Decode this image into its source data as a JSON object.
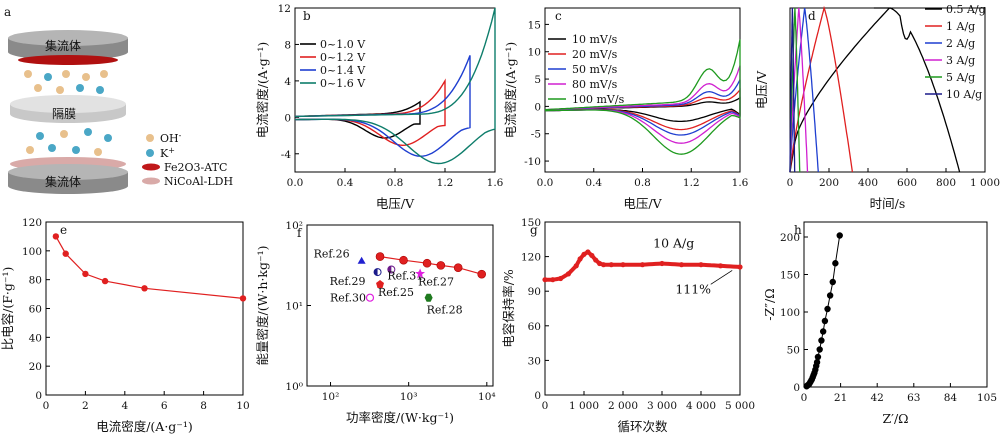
{
  "schematic": {
    "panel_label": "a",
    "top_collector": "集流体",
    "separator": "隔膜",
    "bottom_collector": "集流体",
    "legend": [
      {
        "symbol": "ion",
        "color": "#e8c08c",
        "text": "OH",
        "sup": "-"
      },
      {
        "symbol": "ion",
        "color": "#4aa7c6",
        "text": "K",
        "sup": "+"
      },
      {
        "symbol": "disc",
        "color": "#c0181a",
        "text": "Fe2O3-ATC"
      },
      {
        "symbol": "disc",
        "color": "#d9aaa8",
        "text": "NiCoAl-LDH"
      }
    ]
  },
  "chart_data": [
    {
      "id": "b",
      "type": "line",
      "panel_label": "b",
      "xlabel": "电压/V",
      "ylabel": "电流密度/(A·g⁻¹)",
      "xlim": [
        0,
        1.6
      ],
      "ylim": [
        -6,
        12
      ],
      "xticks": [
        "0.0",
        "0.4",
        "0.8",
        "1.2",
        "1.6"
      ],
      "xtick_values": [
        0,
        0.4,
        0.8,
        1.2,
        1.6
      ],
      "yticks": [
        "-4",
        "0",
        "4",
        "8",
        "12"
      ],
      "ytick_values": [
        -4,
        0,
        4,
        8,
        12
      ],
      "series": [
        {
          "name": "0~1.0 V",
          "color": "#000000",
          "vmax": 1.0,
          "peak": 1.2,
          "trough": -2.2
        },
        {
          "name": "0~1.2 V",
          "color": "#e02020",
          "vmax": 1.2,
          "peak": 3.5,
          "trough": -3.0
        },
        {
          "name": "0~1.4 V",
          "color": "#1f3fd0",
          "vmax": 1.4,
          "peak": 6.3,
          "trough": -4.2
        },
        {
          "name": "0~1.6 V",
          "color": "#0e7d6b",
          "vmax": 1.6,
          "peak": 11.5,
          "trough": -5.0
        }
      ]
    },
    {
      "id": "c",
      "type": "line",
      "panel_label": "c",
      "xlabel": "电压/V",
      "ylabel": "电流密度/(A·g⁻¹)",
      "xlim": [
        0,
        1.6
      ],
      "ylim": [
        -12,
        18
      ],
      "xticks": [
        "0.0",
        "0.4",
        "0.8",
        "1.2",
        "1.6"
      ],
      "xtick_values": [
        0,
        0.4,
        0.8,
        1.2,
        1.6
      ],
      "yticks": [
        "-10",
        "-5",
        "0",
        "5",
        "10",
        "15"
      ],
      "ytick_values": [
        -10,
        -5,
        0,
        5,
        10,
        15
      ],
      "series": [
        {
          "name": "10 mV/s",
          "color": "#000000",
          "peak": 2.0,
          "trough": -2.5
        },
        {
          "name": "20 mV/s",
          "color": "#e02020",
          "peak": 4.0,
          "trough": -4.0
        },
        {
          "name": "50 mV/s",
          "color": "#1f3fd0",
          "peak": 6.5,
          "trough": -5.0
        },
        {
          "name": "80 mV/s",
          "color": "#d020d0",
          "peak": 10.0,
          "trough": -6.5
        },
        {
          "name": "100 mV/s",
          "color": "#1f9a1f",
          "peak": 16.5,
          "trough": -8.5
        }
      ]
    },
    {
      "id": "d",
      "type": "line",
      "panel_label": "d",
      "xlabel": "时间/s",
      "ylabel": "电压/V",
      "xlim": [
        0,
        1000
      ],
      "ylim": [
        0,
        1.6
      ],
      "xticks": [
        "0",
        "200",
        "400",
        "600",
        "800",
        "1 000"
      ],
      "xtick_values": [
        0,
        200,
        400,
        600,
        800,
        1000
      ],
      "series": [
        {
          "name": "0.5 A/g",
          "color": "#000000",
          "charge": 510,
          "total": 870
        },
        {
          "name": "1 A/g",
          "color": "#e02020",
          "charge": 175,
          "total": 320
        },
        {
          "name": "2 A/g",
          "color": "#1f3fd0",
          "charge": 75,
          "total": 145
        },
        {
          "name": "3 A/g",
          "color": "#d020d0",
          "charge": 45,
          "total": 90
        },
        {
          "name": "5 A/g",
          "color": "#1f9a1f",
          "charge": 25,
          "total": 50
        },
        {
          "name": "10 A/g",
          "color": "#1a1a8a",
          "charge": 12,
          "total": 24
        }
      ]
    },
    {
      "id": "e",
      "type": "line",
      "panel_label": "e",
      "xlabel": "电流密度/(A·g⁻¹)",
      "ylabel": "比电容/(F·g⁻¹)",
      "xlim": [
        0,
        10
      ],
      "ylim": [
        0,
        120
      ],
      "xticks": [
        "0",
        "2",
        "4",
        "6",
        "8",
        "10"
      ],
      "xtick_values": [
        0,
        2,
        4,
        6,
        8,
        10
      ],
      "yticks": [
        "0",
        "20",
        "40",
        "60",
        "80",
        "100",
        "120"
      ],
      "ytick_values": [
        0,
        20,
        40,
        60,
        80,
        100,
        120
      ],
      "x": [
        0.5,
        1,
        2,
        3,
        5,
        10
      ],
      "y": [
        110,
        98,
        84,
        79,
        74,
        67
      ],
      "color": "#e02020"
    },
    {
      "id": "f",
      "type": "scatter",
      "panel_label": "f",
      "xlabel": "功率密度/(W·kg⁻¹)",
      "ylabel": "能量密度/(W·h·kg⁻¹)",
      "log": true,
      "xlim": [
        50,
        12000
      ],
      "ylim": [
        1,
        100
      ],
      "xticks": [
        "10²",
        "10³",
        "10⁴"
      ],
      "xtick_values": [
        100,
        1000,
        10000
      ],
      "yticks": [
        "10⁰",
        "10¹",
        "10²"
      ],
      "ytick_values": [
        1,
        10,
        100
      ],
      "series": [
        {
          "color": "#e02020",
          "x": [
            430,
            860,
            1720,
            2580,
            4300,
            8600
          ],
          "y": [
            40.5,
            36.5,
            33.5,
            31.5,
            29.5,
            24.5
          ]
        }
      ],
      "refs": [
        {
          "label": "Ref.26",
          "x": 250,
          "y": 36,
          "marker": "triangle",
          "color": "#2020d0"
        },
        {
          "label": "Ref.29",
          "x": 400,
          "y": 26,
          "marker": "halfcircle",
          "color": "#1a1a8a"
        },
        {
          "label": "Ref.31",
          "x": 600,
          "y": 28,
          "marker": "halfcircle",
          "color": "#6a1a8a"
        },
        {
          "label": "Ref.27",
          "x": 1400,
          "y": 25,
          "marker": "star",
          "color": "#e020e0"
        },
        {
          "label": "Ref.25",
          "x": 430,
          "y": 18.5,
          "marker": "pentagon",
          "color": "#e02020"
        },
        {
          "label": "Ref.30",
          "x": 320,
          "y": 12.5,
          "marker": "opencircle",
          "color": "#e020e0"
        },
        {
          "label": "Ref.28",
          "x": 1800,
          "y": 12.5,
          "marker": "hexagon",
          "color": "#1f7a1f"
        }
      ]
    },
    {
      "id": "g",
      "type": "line",
      "panel_label": "g",
      "xlabel": "循环次数",
      "ylabel": "电容保持率/%",
      "xlim": [
        0,
        5000
      ],
      "ylim": [
        0,
        150
      ],
      "xticks": [
        "0",
        "1 000",
        "2 000",
        "3 000",
        "4 000",
        "5 000"
      ],
      "xtick_values": [
        0,
        1000,
        2000,
        3000,
        4000,
        5000
      ],
      "yticks": [
        "0",
        "30",
        "60",
        "90",
        "120",
        "150"
      ],
      "ytick_values": [
        0,
        30,
        60,
        90,
        120,
        150
      ],
      "x": [
        0,
        200,
        400,
        600,
        800,
        900,
        1000,
        1100,
        1200,
        1300,
        1400,
        1500,
        1700,
        2000,
        2500,
        3000,
        3500,
        4000,
        4500,
        5000
      ],
      "y": [
        100,
        100,
        101,
        105,
        112,
        118,
        122,
        124,
        121,
        117,
        114,
        113,
        113,
        113,
        113,
        114,
        113,
        113,
        112,
        111
      ],
      "color": "#e02020",
      "annotation": "10 A/g",
      "end_label": "111%"
    },
    {
      "id": "h",
      "type": "scatter",
      "panel_label": "h",
      "xlabel": "Z′/Ω",
      "ylabel": "-Z″/Ω",
      "xlim": [
        0,
        105
      ],
      "ylim": [
        0,
        220
      ],
      "xticks": [
        "0",
        "21",
        "42",
        "63",
        "84",
        "105"
      ],
      "xtick_values": [
        0,
        21,
        42,
        63,
        84,
        105
      ],
      "yticks": [
        "0",
        "50",
        "100",
        "150",
        "200"
      ],
      "ytick_values": [
        0,
        50,
        100,
        150,
        200
      ],
      "x": [
        1.5,
        2.0,
        2.5,
        3.0,
        3.5,
        4.0,
        4.5,
        5.0,
        5.5,
        6.0,
        6.5,
        7.0,
        7.5,
        8.0,
        9.0,
        10.0,
        11.0,
        12.0,
        13.5,
        15.0,
        16.5,
        18.0,
        20.5
      ],
      "y": [
        1,
        2,
        3,
        4,
        6,
        8,
        10,
        13,
        16,
        19,
        23,
        28,
        33,
        40,
        50,
        62,
        74,
        88,
        104,
        122,
        140,
        165,
        202
      ],
      "color": "#000000"
    }
  ]
}
